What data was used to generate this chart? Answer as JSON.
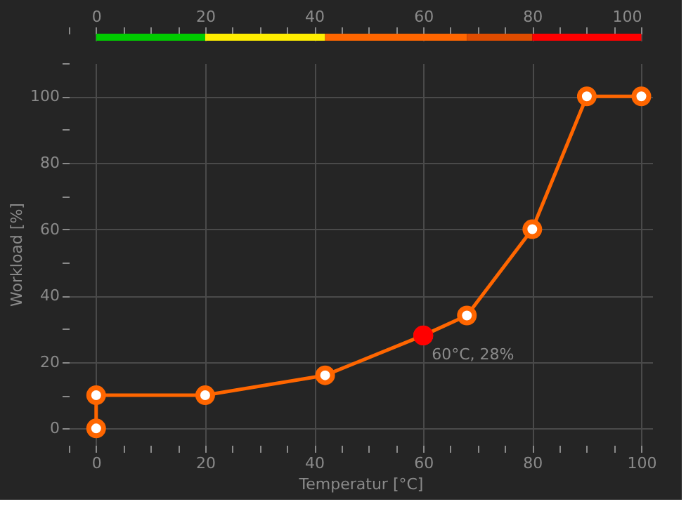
{
  "chart_data": [
    {
      "type": "bar",
      "orientation": "horizontal",
      "stacked": true,
      "categories": [
        null
      ],
      "tick_labels": "x",
      "grid": "x",
      "series": [
        {
          "color": "#00cc00",
          "values": [
            20
          ]
        },
        {
          "color": "#ffee00",
          "values": [
            22
          ]
        },
        {
          "color": "#ff6600",
          "values": [
            26
          ]
        },
        {
          "color": "#e04c00",
          "values": [
            12
          ]
        },
        {
          "color": "#ff0000",
          "values": [
            20
          ]
        }
      ],
      "xlim": [
        -5,
        100
      ],
      "xticks": [
        {
          "value": -5,
          "label": null
        },
        0,
        {
          "value": 5,
          "label": null
        },
        {
          "value": 10,
          "label": null
        },
        {
          "value": 15,
          "label": null
        },
        20,
        {
          "value": 25,
          "label": null
        },
        {
          "value": 30,
          "label": null
        },
        {
          "value": 35,
          "label": null
        },
        40,
        {
          "value": 45,
          "label": null
        },
        {
          "value": 50,
          "label": null
        },
        {
          "value": 55,
          "label": null
        },
        60,
        {
          "value": 65,
          "label": null
        },
        {
          "value": 70,
          "label": null
        },
        {
          "value": 75,
          "label": null
        },
        80,
        {
          "value": 85,
          "label": null
        },
        {
          "value": 90,
          "label": null
        },
        {
          "value": 95,
          "label": null
        },
        100
      ]
    },
    {
      "type": "line",
      "xlabel": "Temperatur [°C]",
      "ylabel": "Workload [%]",
      "series": [
        {
          "color": "#ff6600",
          "x": [
            0,
            0,
            20,
            42,
            60,
            68,
            80,
            90,
            100
          ],
          "values": [
            0,
            10,
            10,
            16,
            28,
            34,
            60,
            100,
            100
          ]
        },
        {
          "type": "scatter",
          "color": "#ff0000",
          "x": [
            60
          ],
          "values": [
            28
          ]
        }
      ],
      "marker": "circle",
      "line_style": "solid",
      "grid": true,
      "xlim": [
        -5,
        102
      ],
      "ylim": [
        -5,
        110
      ],
      "xticks": [
        {
          "value": -5,
          "label": null
        },
        0,
        {
          "value": 5,
          "label": null
        },
        {
          "value": 10,
          "label": null
        },
        {
          "value": 15,
          "label": null
        },
        20,
        {
          "value": 25,
          "label": null
        },
        {
          "value": 30,
          "label": null
        },
        {
          "value": 35,
          "label": null
        },
        40,
        {
          "value": 45,
          "label": null
        },
        {
          "value": 50,
          "label": null
        },
        {
          "value": 55,
          "label": null
        },
        60,
        {
          "value": 65,
          "label": null
        },
        {
          "value": 70,
          "label": null
        },
        {
          "value": 75,
          "label": null
        },
        80,
        {
          "value": 85,
          "label": null
        },
        {
          "value": 90,
          "label": null
        },
        {
          "value": 95,
          "label": null
        },
        100
      ],
      "yticks": [
        0,
        {
          "value": 10,
          "label": null
        },
        20,
        {
          "value": 30,
          "label": null
        },
        40,
        {
          "value": 50,
          "label": null
        },
        60,
        {
          "value": 70,
          "label": null
        },
        80,
        {
          "value": 90,
          "label": null
        },
        100,
        {
          "value": 110,
          "label": null
        }
      ],
      "annotations": [
        {
          "text": "60°C, 28%",
          "x": 60,
          "y": 28
        }
      ]
    }
  ]
}
